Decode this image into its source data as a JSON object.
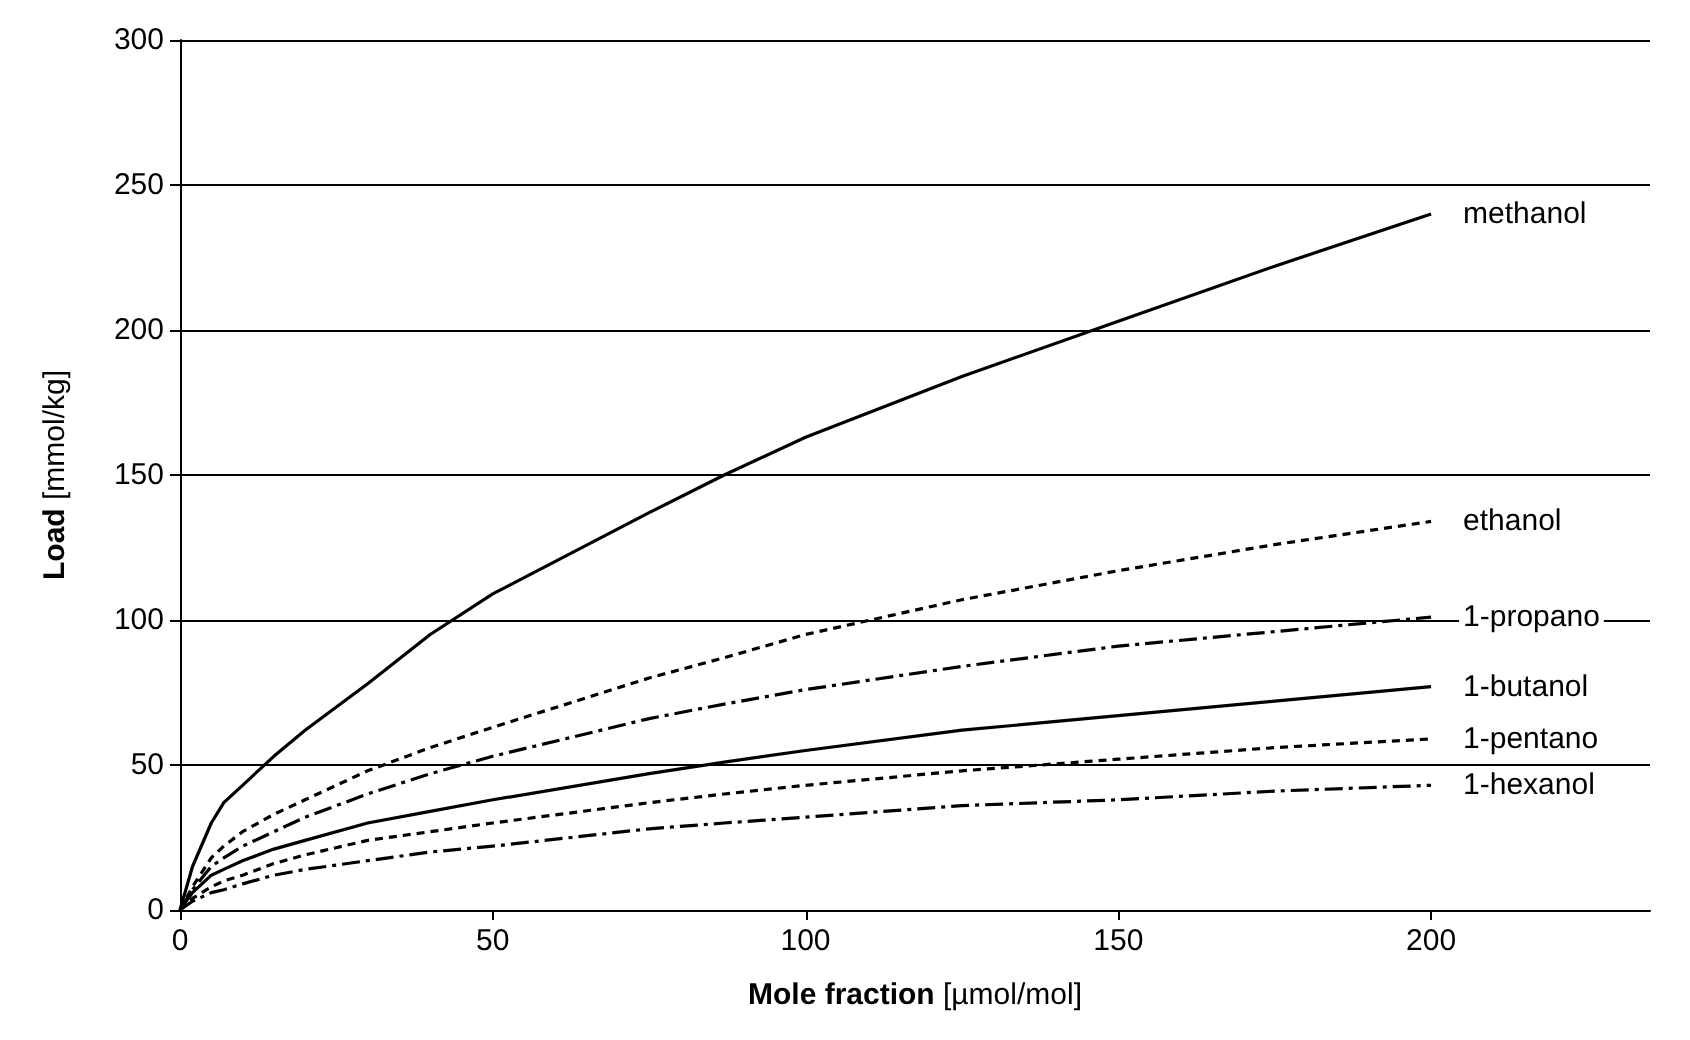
{
  "chart_data": {
    "type": "line",
    "xlabel": "Mole fraction [µmol/mol]",
    "ylabel": "Load [mmol/kg]",
    "x": [
      0,
      2,
      5,
      7,
      10,
      15,
      20,
      30,
      40,
      50,
      75,
      87,
      100,
      125,
      150,
      175,
      200
    ],
    "series": [
      {
        "name": "methanol",
        "color": "#000000",
        "line_style": "solid",
        "values": [
          0,
          15,
          30,
          37,
          43,
          53,
          62,
          78,
          95,
          109,
          137,
          150,
          163,
          184,
          203,
          222,
          240
        ]
      },
      {
        "name": "ethanol",
        "color": "#000000",
        "line_style": "dotted",
        "values": [
          0,
          8,
          18,
          22,
          27,
          33,
          38,
          48,
          56,
          63,
          80,
          87,
          95,
          107,
          117,
          126,
          134
        ]
      },
      {
        "name": "1-propano",
        "color": "#000000",
        "line_style": "dashed",
        "values": [
          0,
          7,
          15,
          18,
          22,
          27,
          32,
          40,
          47,
          53,
          66,
          71,
          76,
          84,
          91,
          96,
          101
        ]
      },
      {
        "name": "1-butanol",
        "color": "#000000",
        "line_style": "solid",
        "values": [
          0,
          6,
          12,
          14,
          17,
          21,
          24,
          30,
          34,
          38,
          47,
          51,
          55,
          62,
          67,
          72,
          77
        ]
      },
      {
        "name": "1-pentano",
        "color": "#000000",
        "line_style": "dotted",
        "values": [
          0,
          4,
          8,
          10,
          12,
          16,
          19,
          24,
          27,
          30,
          37,
          40,
          43,
          48,
          52,
          56,
          59
        ]
      },
      {
        "name": "1-hexanol",
        "color": "#000000",
        "line_style": "dashed",
        "values": [
          0,
          3,
          6,
          7,
          9,
          12,
          14,
          17,
          20,
          22,
          28,
          30,
          32,
          36,
          38,
          41,
          43
        ]
      }
    ],
    "xlim": [
      0,
      235
    ],
    "xticks": [
      0,
      50,
      100,
      150,
      200
    ],
    "ylim": [
      0,
      300
    ],
    "yticks": [
      0,
      50,
      100,
      150,
      200,
      250,
      300
    ],
    "grid": "y",
    "legend": false,
    "marker": "none"
  }
}
